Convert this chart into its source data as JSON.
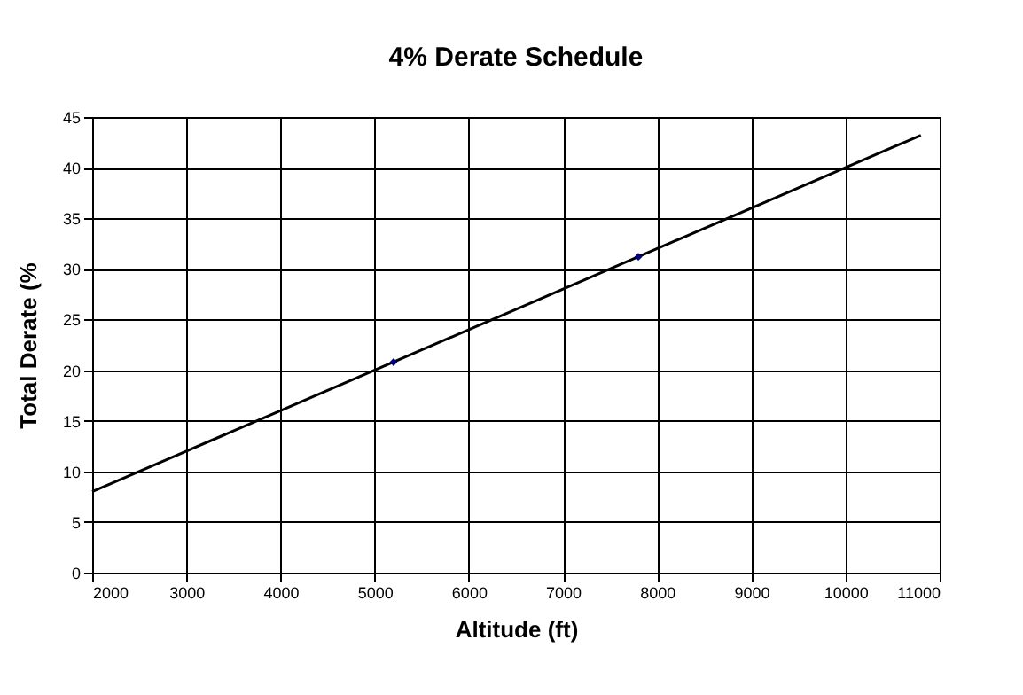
{
  "chart_data": {
    "type": "line",
    "title": "4% Derate Schedule",
    "xlabel": "Altitude (ft)",
    "ylabel": "Total Derate (%",
    "xlim": [
      2000,
      11000
    ],
    "xticks": [
      2000,
      3000,
      4000,
      5000,
      6000,
      7000,
      8000,
      9000,
      10000,
      11000
    ],
    "ylim": [
      0,
      45
    ],
    "yticks": [
      0,
      5,
      10,
      15,
      20,
      25,
      30,
      35,
      40,
      45
    ],
    "grid": true,
    "series": [
      {
        "color": "#000000",
        "x": [
          2000,
          10800
        ],
        "values": [
          8,
          43.2
        ]
      },
      {
        "type": "scatter",
        "marker": "diamond",
        "color": "#000080",
        "x": [
          5200,
          7800
        ],
        "values": [
          20.8,
          31.2
        ]
      }
    ]
  }
}
